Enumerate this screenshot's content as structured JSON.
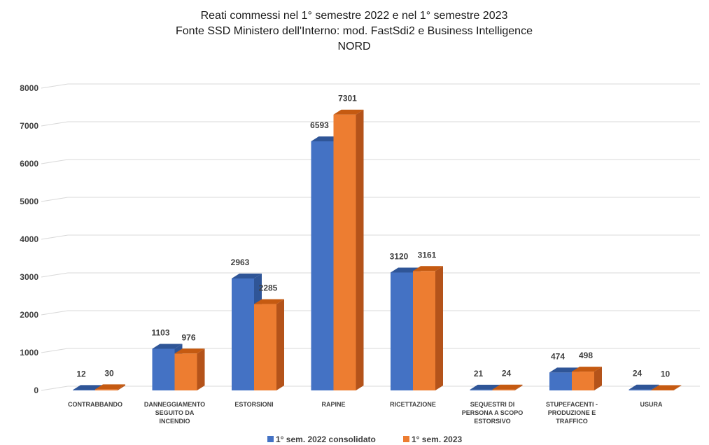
{
  "colors": {
    "series_2022": "#4472c4",
    "series_2022_top": "#2f5597",
    "series_2022_side": "#2f5597",
    "series_2023": "#ed7d31",
    "series_2023_top": "#c55a11",
    "series_2023_side": "#b4531a",
    "grid": "#d9d9d9"
  },
  "chart_data": {
    "type": "bar",
    "style": "3d-clustered-column",
    "title": [
      "Reati commessi nel 1° semestre 2022 e nel 1° semestre 2023",
      "Fonte SSD Ministero dell'Interno: mod. FastSdi2 e Business Intelligence",
      "NORD"
    ],
    "categories": [
      [
        "CONTRABBANDO"
      ],
      [
        "DANNEGGIAMENTO",
        "SEGUITO DA",
        "INCENDIO"
      ],
      [
        "ESTORSIONI"
      ],
      [
        "RAPINE"
      ],
      [
        "RICETTAZIONE"
      ],
      [
        "SEQUESTRI DI",
        "PERSONA A SCOPO",
        "ESTORSIVO"
      ],
      [
        "STUPEFACENTI -",
        "PRODUZIONE E",
        "TRAFFICO"
      ],
      [
        "USURA"
      ]
    ],
    "series": [
      {
        "name": "1° sem. 2022 consolidato",
        "values": [
          12,
          1103,
          2963,
          6593,
          3120,
          21,
          474,
          24
        ]
      },
      {
        "name": "1° sem. 2023",
        "values": [
          30,
          976,
          2285,
          7301,
          3161,
          24,
          498,
          10
        ]
      }
    ],
    "yticks": [
      "0",
      "1000",
      "2000",
      "3000",
      "4000",
      "5000",
      "6000",
      "7000",
      "8000"
    ],
    "ylim": [
      0,
      8000
    ],
    "grid": true,
    "legend": "bottom",
    "data_labels": true
  }
}
